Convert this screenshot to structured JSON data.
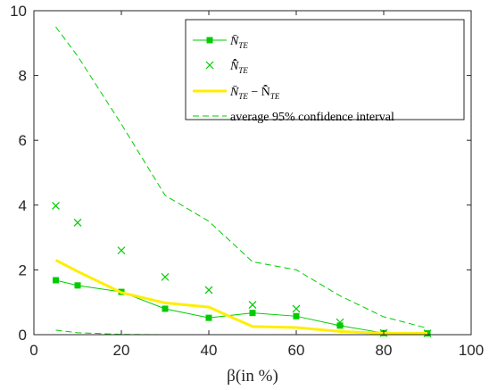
{
  "chart_data": {
    "type": "line",
    "xlabel": "β(in %)",
    "ylabel": "",
    "title": "",
    "xlim": [
      0,
      100
    ],
    "ylim": [
      0,
      10
    ],
    "xticks": [
      0,
      20,
      40,
      60,
      80,
      100
    ],
    "yticks": [
      0,
      2,
      4,
      6,
      8,
      10
    ],
    "grid": false,
    "legend_placement": "top-right",
    "series": [
      {
        "name": "N̄_{T_E}",
        "style": "line-square-markers",
        "color": "#00cc00",
        "x": [
          5,
          10,
          20,
          30,
          40,
          50,
          60,
          70,
          80,
          90
        ],
        "y": [
          1.68,
          1.52,
          1.32,
          0.8,
          0.52,
          0.67,
          0.57,
          0.28,
          0.05,
          0.04
        ]
      },
      {
        "name": "N̄̂_{T_E}",
        "style": "x-markers",
        "color": "#00cc00",
        "x": [
          5,
          10,
          20,
          30,
          40,
          50,
          60,
          70,
          80,
          90
        ],
        "y": [
          3.98,
          3.46,
          2.6,
          1.78,
          1.38,
          0.92,
          0.8,
          0.38,
          0.05,
          0.04
        ]
      },
      {
        "name": "N̄_{T_E} − N̄̂_{T_E}",
        "style": "thick-line",
        "color": "#ffee00",
        "x": [
          5,
          10,
          20,
          30,
          40,
          50,
          60,
          70,
          80,
          90
        ],
        "y": [
          2.3,
          1.95,
          1.3,
          0.98,
          0.85,
          0.25,
          0.22,
          0.1,
          0.04,
          0.04
        ]
      },
      {
        "name": "average 95% confidence interval",
        "style": "dashed",
        "color": "#00cc00",
        "x": [
          5,
          10,
          20,
          30,
          40,
          50,
          60,
          70,
          80,
          90
        ],
        "y": [
          9.5,
          8.6,
          6.5,
          4.3,
          3.5,
          2.25,
          2.0,
          1.2,
          0.55,
          0.2
        ]
      },
      {
        "name": "",
        "style": "dashed",
        "color": "#00cc00",
        "x": [
          5,
          10,
          20,
          30,
          40,
          50,
          60,
          70,
          80,
          90
        ],
        "y": [
          0.14,
          0.06,
          0.01,
          0.0,
          0.0,
          0.0,
          0.0,
          0.0,
          0.0,
          0.0
        ]
      }
    ],
    "legend": [
      {
        "main": "N̄",
        "sub": "TE",
        "text": ""
      },
      {
        "main": "N̄̂",
        "sub": "TE",
        "text": ""
      },
      {
        "main": "N̄",
        "sub": "TE",
        "text": " − N̄̂",
        "sub2": "TE"
      },
      {
        "main": "",
        "sub": "",
        "text": "average 95% confidence interval"
      }
    ]
  }
}
